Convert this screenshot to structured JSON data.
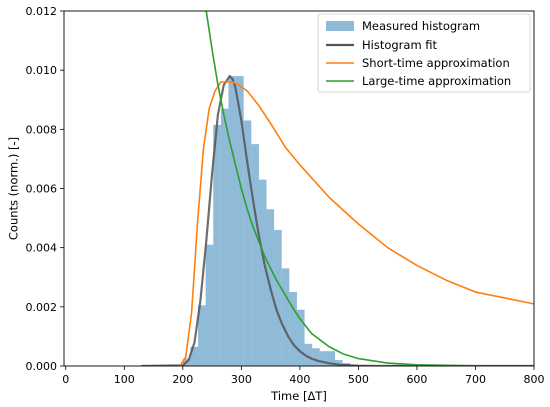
{
  "chart_data": {
    "type": "line",
    "xlabel": "Time [ΔT]",
    "ylabel": "Counts (norm.) [-]",
    "xlim": [
      -3,
      800
    ],
    "ylim": [
      0,
      0.012
    ],
    "x_ticks": [
      0,
      100,
      200,
      300,
      400,
      500,
      600,
      700,
      800
    ],
    "y_ticks": [
      0.0,
      0.002,
      0.004,
      0.006,
      0.008,
      0.01,
      0.012
    ],
    "x_tick_labels": [
      "0",
      "100",
      "200",
      "300",
      "400",
      "500",
      "600",
      "700",
      "800"
    ],
    "y_tick_labels": [
      "0.000",
      "0.002",
      "0.004",
      "0.006",
      "0.008",
      "0.010",
      "0.012"
    ],
    "grid": false,
    "legend_position": "top-right",
    "colors": {
      "histogram": "#1f77b4",
      "histogram_fit": "#555555",
      "short_time": "#ff7f0e",
      "large_time": "#2ca02c"
    },
    "histogram": {
      "name": "Measured histogram",
      "bin_edges": [
        200,
        213,
        226,
        239,
        252,
        265,
        278,
        291,
        304,
        317,
        330,
        343,
        356,
        369,
        382,
        395,
        408,
        421,
        434,
        447,
        460,
        473,
        486,
        499,
        512
      ],
      "counts": [
        0.00025,
        0.00065,
        0.00205,
        0.0041,
        0.00815,
        0.0087,
        0.0098,
        0.0098,
        0.0083,
        0.0075,
        0.0063,
        0.0053,
        0.0046,
        0.0033,
        0.0025,
        0.0019,
        0.00075,
        0.0006,
        0.0005,
        0.0005,
        0.0002,
        0.0001,
        5e-05,
        3e-05
      ]
    },
    "series": [
      {
        "name": "Histogram fit",
        "x": [
          130,
          200,
          210,
          220,
          230,
          240,
          250,
          260,
          270,
          280,
          285,
          290,
          300,
          310,
          320,
          330,
          340,
          350,
          360,
          370,
          380,
          390,
          400,
          410,
          420,
          430,
          450,
          470,
          500,
          550,
          800
        ],
        "y": [
          0,
          2e-05,
          0.0002,
          0.0008,
          0.0022,
          0.0042,
          0.0065,
          0.0085,
          0.0095,
          0.0098,
          0.0097,
          0.0094,
          0.0083,
          0.0069,
          0.0056,
          0.0044,
          0.0034,
          0.0026,
          0.0019,
          0.0014,
          0.001,
          0.0007,
          0.0005,
          0.00035,
          0.00025,
          0.00018,
          9e-05,
          4e-05,
          1e-05,
          0,
          0
        ]
      },
      {
        "name": "Short-time approximation",
        "x": [
          195,
          205,
          215,
          225,
          235,
          245,
          255,
          265,
          275,
          285,
          295,
          310,
          330,
          350,
          375,
          400,
          450,
          500,
          550,
          600,
          650,
          700,
          750,
          800
        ],
        "y": [
          0,
          0.0003,
          0.0018,
          0.0048,
          0.0073,
          0.0087,
          0.0093,
          0.0096,
          0.0096,
          0.0096,
          0.0095,
          0.0093,
          0.0088,
          0.0082,
          0.0074,
          0.0068,
          0.0057,
          0.0048,
          0.004,
          0.0034,
          0.0029,
          0.0025,
          0.0023,
          0.0021
        ]
      },
      {
        "name": "Large-time approximation",
        "x": [
          240,
          250,
          260,
          270,
          280,
          290,
          300,
          310,
          320,
          330,
          340,
          350,
          360,
          375,
          390,
          400,
          420,
          450,
          475,
          500,
          550,
          600,
          700,
          800
        ],
        "y": [
          0.012,
          0.0107,
          0.0095,
          0.0085,
          0.0076,
          0.0068,
          0.006,
          0.0053,
          0.0047,
          0.0042,
          0.0037,
          0.0033,
          0.0029,
          0.0024,
          0.0019,
          0.0016,
          0.0011,
          0.00065,
          0.0004,
          0.00025,
          0.0001,
          4e-05,
          5e-06,
          0
        ]
      }
    ]
  }
}
